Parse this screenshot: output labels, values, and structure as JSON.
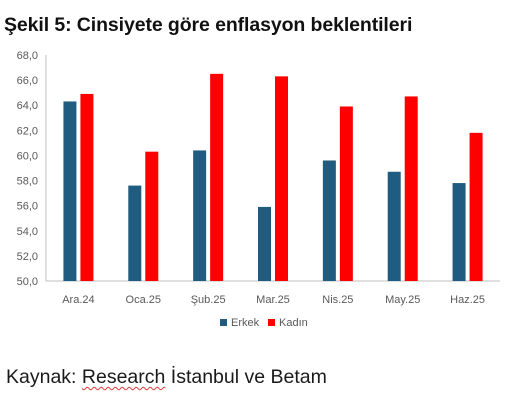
{
  "figure": {
    "title": "Şekil 5: Cinsiyete göre enflasyon beklentileri",
    "source_prefix": "Kaynak: ",
    "source_org": "Research",
    "source_suffix": " İstanbul ve Betam"
  },
  "chart_data": {
    "type": "bar",
    "categories": [
      "Ara.24",
      "Oca.25",
      "Şub.25",
      "Mar.25",
      "Nis.25",
      "May.25",
      "Haz.25"
    ],
    "series": [
      {
        "name": "Erkek",
        "color": "#1f5c80",
        "values": [
          64.3,
          57.6,
          60.4,
          55.9,
          59.6,
          58.7,
          57.8
        ]
      },
      {
        "name": "Kadın",
        "color": "#ff0000",
        "values": [
          64.9,
          60.3,
          66.5,
          66.3,
          63.9,
          64.7,
          61.8
        ]
      }
    ],
    "ylim": [
      50,
      68
    ],
    "yticks": [
      "50,0",
      "52,0",
      "54,0",
      "56,0",
      "58,0",
      "60,0",
      "62,0",
      "64,0",
      "66,0",
      "68,0"
    ],
    "grid": false,
    "legend": "bottom-center",
    "xlabel": "",
    "ylabel": ""
  }
}
